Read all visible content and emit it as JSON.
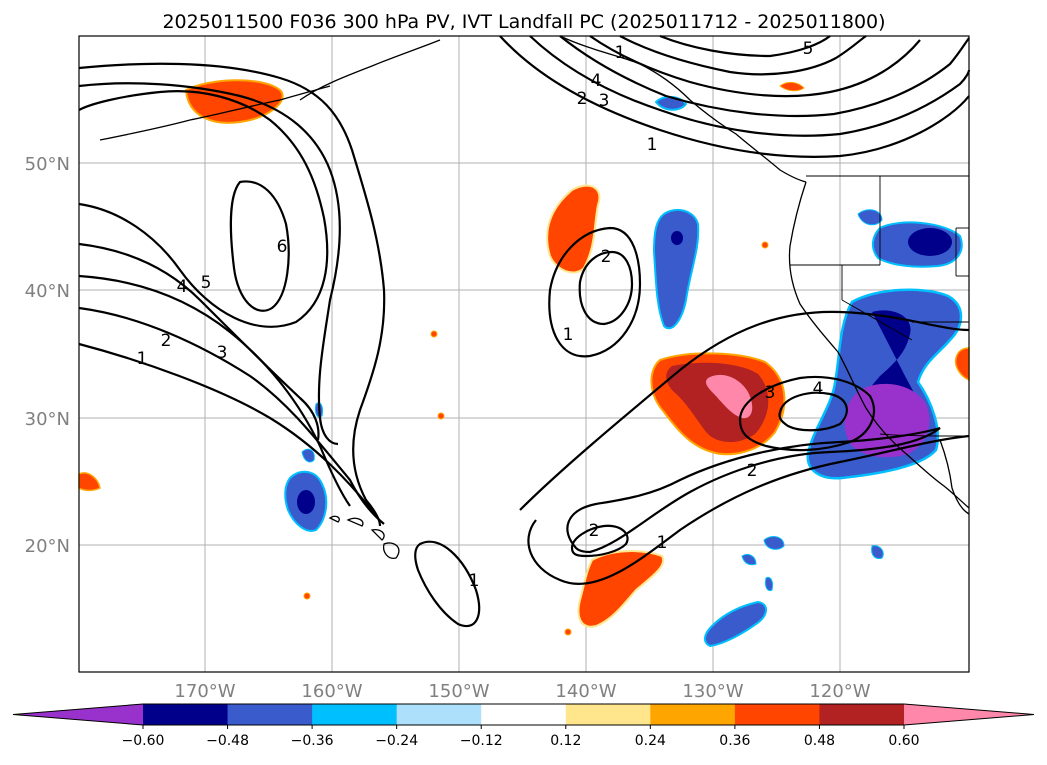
{
  "title": "2025011500 F036 300 hPa PV, IVT Landfall PC (2025011712 - 2025011800)",
  "map": {
    "lon_labels": [
      "170°W",
      "160°W",
      "150°W",
      "140°W",
      "130°W",
      "120°W"
    ],
    "lat_labels": [
      "50°N",
      "40°N",
      "30°N",
      "20°N"
    ],
    "gridlines": true
  },
  "colorbar": {
    "ticks": [
      "−0.60",
      "−0.48",
      "−0.36",
      "−0.24",
      "−0.12",
      "0.12",
      "0.24",
      "0.36",
      "0.48",
      "0.60"
    ],
    "colors": [
      "#9932CC",
      "#00008B",
      "#3A5BCC",
      "#00BFFF",
      "#ADE0FA",
      "#FFFFFF",
      "#FFE68C",
      "#FFA500",
      "#FF4500",
      "#B22222",
      "#FF88AA"
    ],
    "extend": "both"
  },
  "contour_labels": {
    "c1a": "1",
    "c2a": "2",
    "c3a": "3",
    "c4a": "4",
    "c5a": "5",
    "c6a": "6",
    "c1b": "1",
    "c2b": "2",
    "c3b": "3",
    "c4b": "4",
    "c5b": "5",
    "c1c": "1",
    "c2c": "2",
    "c1d": "1",
    "c2d": "2",
    "c3d": "3",
    "c4d": "4",
    "c1e": "1",
    "c2e": "2",
    "c1f": "1"
  }
}
